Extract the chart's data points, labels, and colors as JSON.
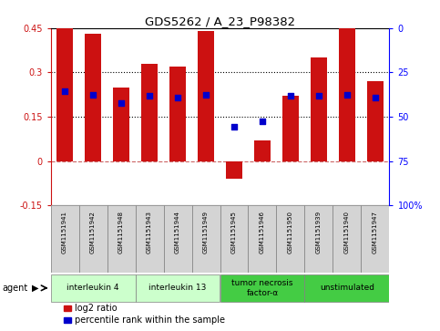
{
  "title": "GDS5262 / A_23_P98382",
  "samples": [
    "GSM1151941",
    "GSM1151942",
    "GSM1151948",
    "GSM1151943",
    "GSM1151944",
    "GSM1151949",
    "GSM1151945",
    "GSM1151946",
    "GSM1151950",
    "GSM1151939",
    "GSM1151940",
    "GSM1151947"
  ],
  "log2_ratio": [
    0.45,
    0.43,
    0.25,
    0.33,
    0.32,
    0.44,
    -0.06,
    0.07,
    0.22,
    0.35,
    0.45,
    0.27
  ],
  "percentile_rank": [
    0.235,
    0.225,
    0.195,
    0.22,
    0.215,
    0.225,
    0.115,
    0.135,
    0.22,
    0.22,
    0.225,
    0.215
  ],
  "ylim": [
    -0.15,
    0.45
  ],
  "yticks_left": [
    -0.15,
    0.0,
    0.15,
    0.3,
    0.45
  ],
  "ytick_labels_left": [
    "-0.15",
    "0",
    "0.15",
    "0.3",
    "0.45"
  ],
  "hlines": [
    0.15,
    0.3
  ],
  "zero_line": 0.0,
  "bar_color": "#cc1111",
  "dot_color": "#0000cc",
  "agents": [
    {
      "label": "interleukin 4",
      "start": 0,
      "end": 3,
      "color": "#ccffcc"
    },
    {
      "label": "interleukin 13",
      "start": 3,
      "end": 6,
      "color": "#ccffcc"
    },
    {
      "label": "tumor necrosis\nfactor-α",
      "start": 6,
      "end": 9,
      "color": "#44cc44"
    },
    {
      "label": "unstimulated",
      "start": 9,
      "end": 12,
      "color": "#44cc44"
    }
  ],
  "agent_label": "agent",
  "legend_log2": "log2 ratio",
  "legend_pct": "percentile rank within the sample",
  "right_ytick_labels": [
    "100%",
    "75",
    "50",
    "25",
    "0"
  ],
  "sample_bg": "#d4d4d4",
  "figsize": [
    4.83,
    3.63
  ],
  "dpi": 100
}
